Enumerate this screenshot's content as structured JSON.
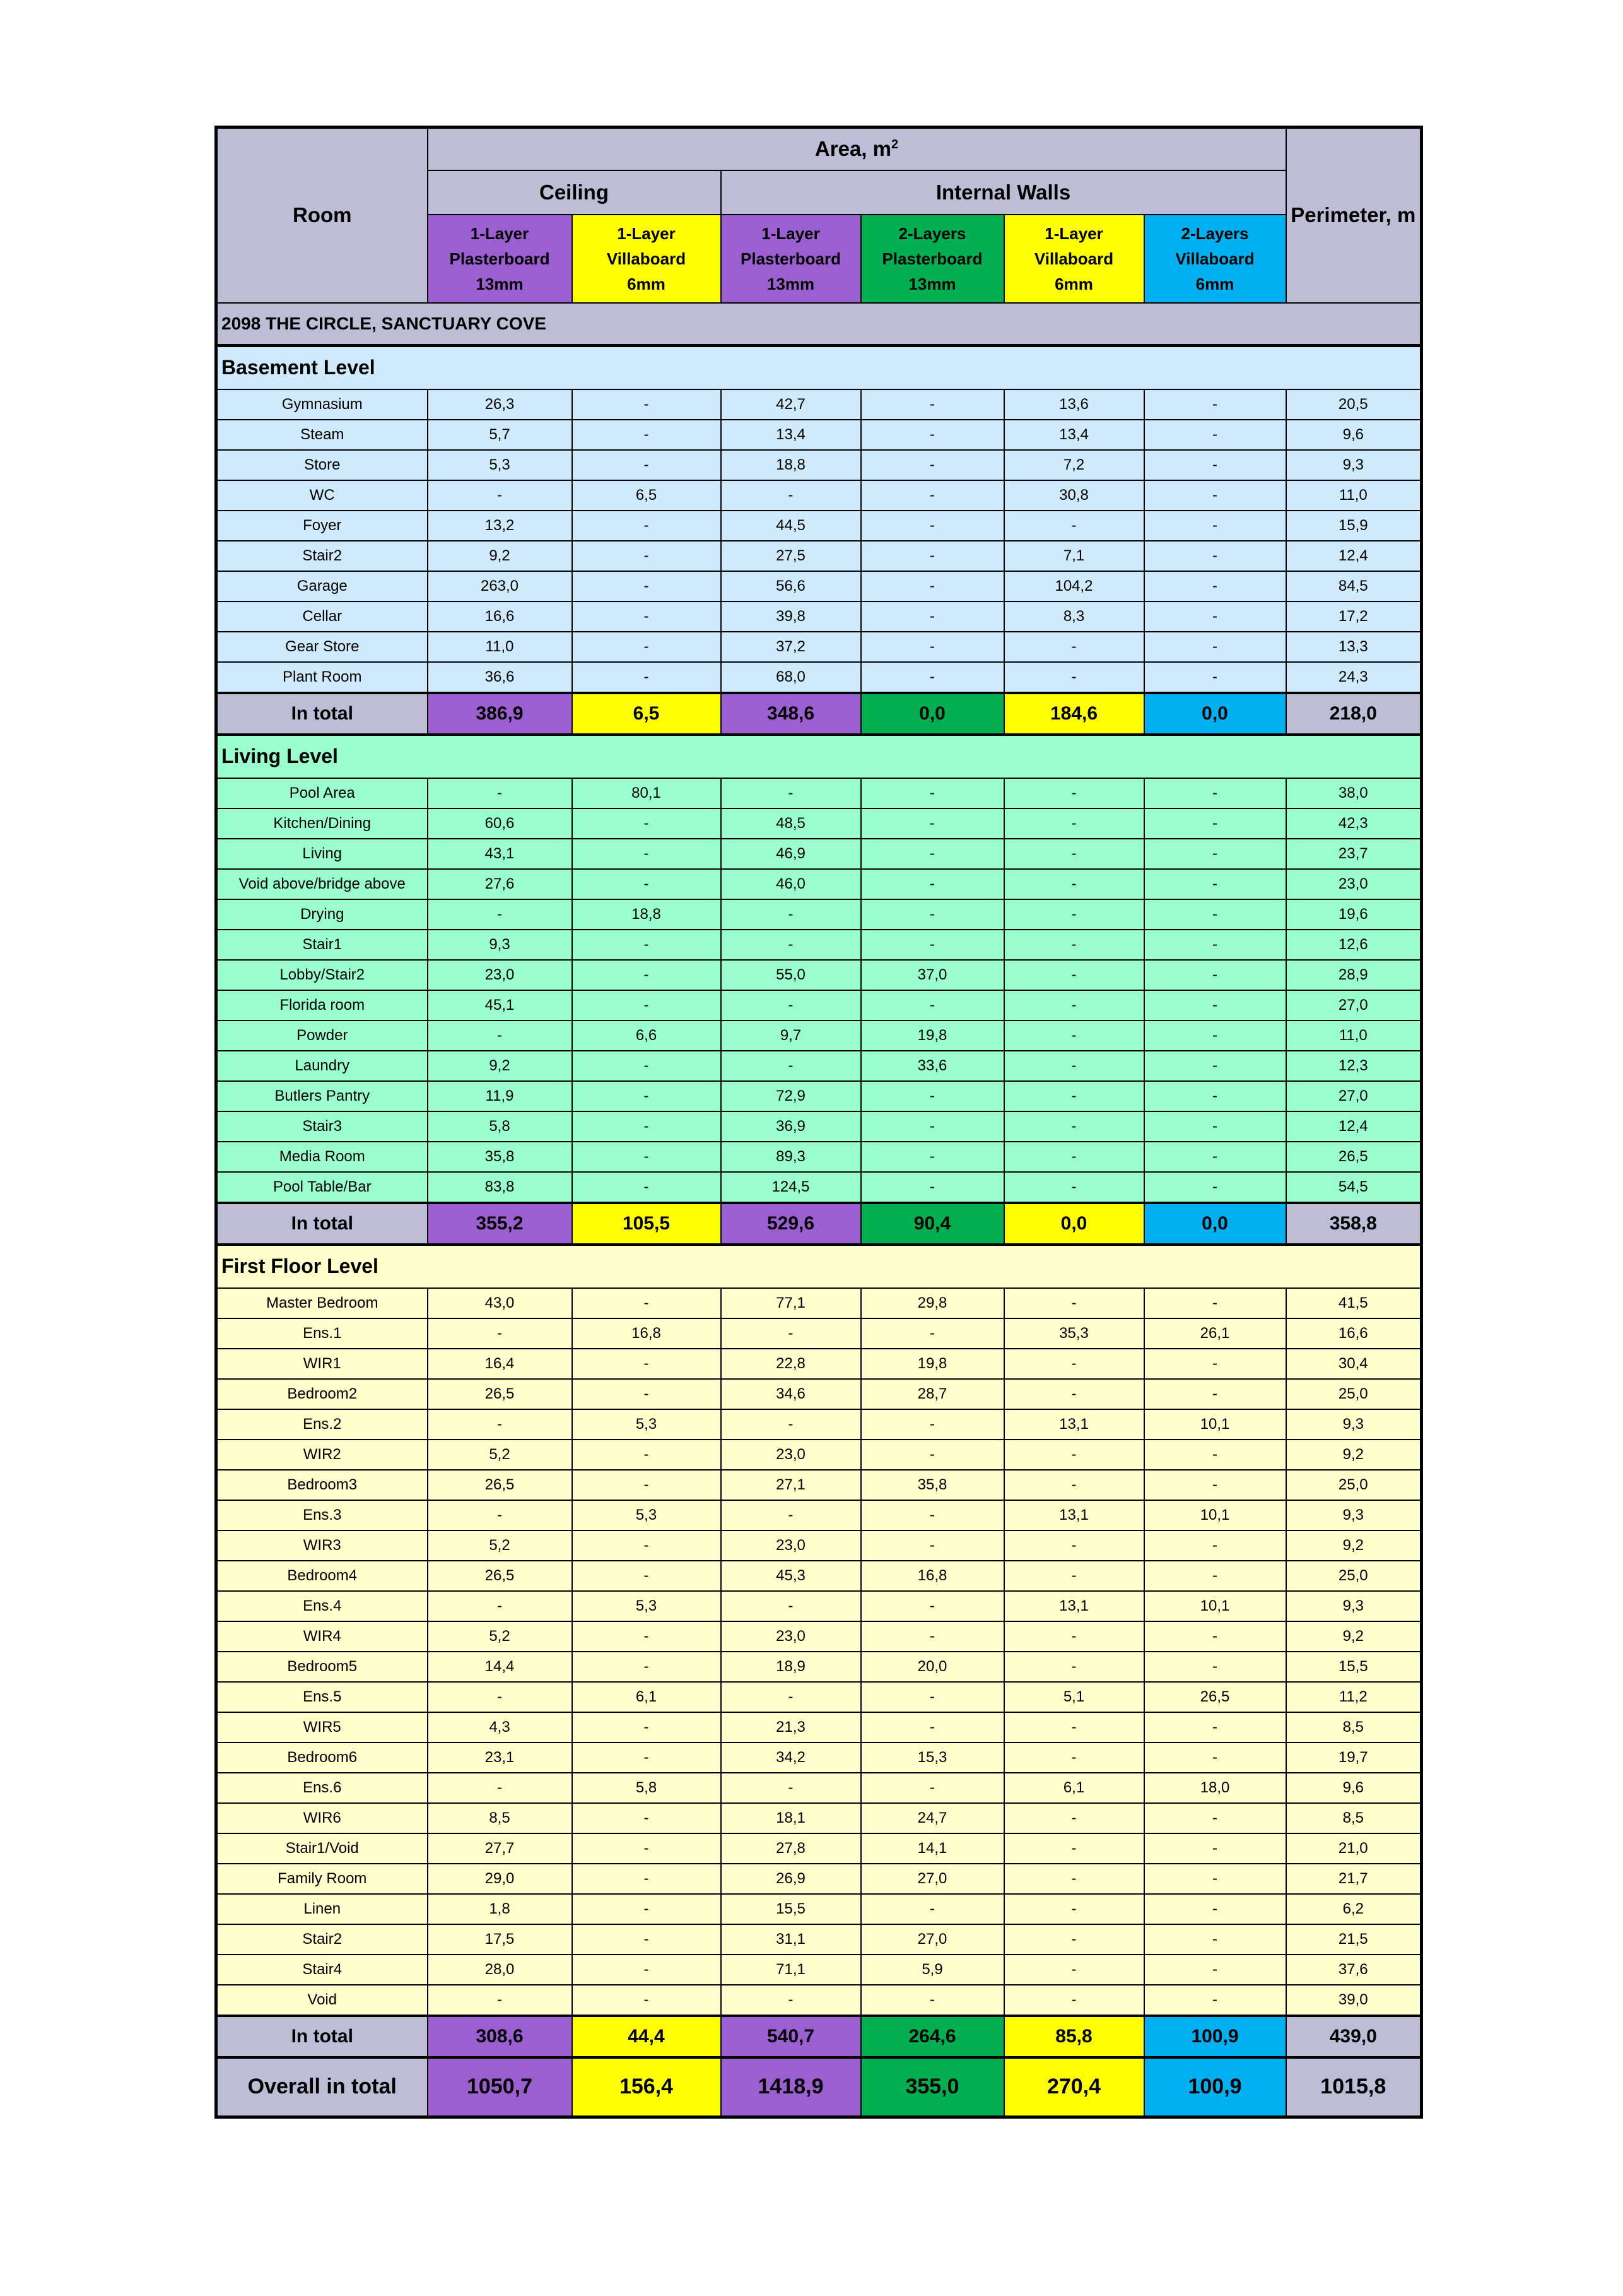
{
  "header": {
    "room": "Room",
    "area": "Area, m",
    "area_sup": "2",
    "ceiling": "Ceiling",
    "internal_walls": "Internal Walls",
    "perimeter": "Perimeter, m",
    "columns": [
      {
        "line1": "1-Layer",
        "line2": "Plasterboard",
        "line3": "13mm",
        "color": "#9c5fd1"
      },
      {
        "line1": "1-Layer",
        "line2": "Villaboard",
        "line3": "6mm",
        "color": "#ffff00"
      },
      {
        "line1": "1-Layer",
        "line2": "Plasterboard",
        "line3": "13mm",
        "color": "#9c5fd1"
      },
      {
        "line1": "2-Layers",
        "line2": "Plasterboard",
        "line3": "13mm",
        "color": "#00b050"
      },
      {
        "line1": "1-Layer",
        "line2": "Villaboard",
        "line3": "6mm",
        "color": "#ffff00"
      },
      {
        "line1": "2-Layers",
        "line2": "Villaboard",
        "line3": "6mm",
        "color": "#00b0f0"
      }
    ],
    "header_bg": "#bdbdd6"
  },
  "project_title": "2098 THE CIRCLE, SANCTUARY COVE",
  "sections": [
    {
      "name": "Basement Level",
      "bg": "#cfeafb",
      "rows": [
        [
          "Gymnasium",
          "26,3",
          "-",
          "42,7",
          "-",
          "13,6",
          "-",
          "20,5"
        ],
        [
          "Steam",
          "5,7",
          "-",
          "13,4",
          "-",
          "13,4",
          "-",
          "9,6"
        ],
        [
          "Store",
          "5,3",
          "-",
          "18,8",
          "-",
          "7,2",
          "-",
          "9,3"
        ],
        [
          "WC",
          "-",
          "6,5",
          "-",
          "-",
          "30,8",
          "-",
          "11,0"
        ],
        [
          "Foyer",
          "13,2",
          "-",
          "44,5",
          "-",
          "-",
          "-",
          "15,9"
        ],
        [
          "Stair2",
          "9,2",
          "-",
          "27,5",
          "-",
          "7,1",
          "-",
          "12,4"
        ],
        [
          "Garage",
          "263,0",
          "-",
          "56,6",
          "-",
          "104,2",
          "-",
          "84,5"
        ],
        [
          "Cellar",
          "16,6",
          "-",
          "39,8",
          "-",
          "8,3",
          "-",
          "17,2"
        ],
        [
          "Gear Store",
          "11,0",
          "-",
          "37,2",
          "-",
          "-",
          "-",
          "13,3"
        ],
        [
          "Plant Room",
          "36,6",
          "-",
          "68,0",
          "-",
          "-",
          "-",
          "24,3"
        ]
      ],
      "total": [
        "In total",
        "386,9",
        "6,5",
        "348,6",
        "0,0",
        "184,6",
        "0,0",
        "218,0"
      ]
    },
    {
      "name": "Living Level",
      "bg": "#99ffcc",
      "rows": [
        [
          "Pool Area",
          "-",
          "80,1",
          "-",
          "-",
          "-",
          "-",
          "38,0"
        ],
        [
          "Kitchen/Dining",
          "60,6",
          "-",
          "48,5",
          "-",
          "-",
          "-",
          "42,3"
        ],
        [
          "Living",
          "43,1",
          "-",
          "46,9",
          "-",
          "-",
          "-",
          "23,7"
        ],
        [
          "Void above/bridge above",
          "27,6",
          "-",
          "46,0",
          "-",
          "-",
          "-",
          "23,0"
        ],
        [
          "Drying",
          "-",
          "18,8",
          "-",
          "-",
          "-",
          "-",
          "19,6"
        ],
        [
          "Stair1",
          "9,3",
          "-",
          "-",
          "-",
          "-",
          "-",
          "12,6"
        ],
        [
          "Lobby/Stair2",
          "23,0",
          "-",
          "55,0",
          "37,0",
          "-",
          "-",
          "28,9"
        ],
        [
          "Florida room",
          "45,1",
          "-",
          "-",
          "-",
          "-",
          "-",
          "27,0"
        ],
        [
          "Powder",
          "-",
          "6,6",
          "9,7",
          "19,8",
          "-",
          "-",
          "11,0"
        ],
        [
          "Laundry",
          "9,2",
          "-",
          "-",
          "33,6",
          "-",
          "-",
          "12,3"
        ],
        [
          "Butlers Pantry",
          "11,9",
          "-",
          "72,9",
          "-",
          "-",
          "-",
          "27,0"
        ],
        [
          "Stair3",
          "5,8",
          "-",
          "36,9",
          "-",
          "-",
          "-",
          "12,4"
        ],
        [
          "Media Room",
          "35,8",
          "-",
          "89,3",
          "-",
          "-",
          "-",
          "26,5"
        ],
        [
          "Pool Table/Bar",
          "83,8",
          "-",
          "124,5",
          "-",
          "-",
          "-",
          "54,5"
        ]
      ],
      "total": [
        "In total",
        "355,2",
        "105,5",
        "529,6",
        "90,4",
        "0,0",
        "0,0",
        "358,8"
      ]
    },
    {
      "name": "First Floor Level",
      "bg": "#ffffcc",
      "rows": [
        [
          "Master Bedroom",
          "43,0",
          "-",
          "77,1",
          "29,8",
          "-",
          "-",
          "41,5"
        ],
        [
          "Ens.1",
          "-",
          "16,8",
          "-",
          "-",
          "35,3",
          "26,1",
          "16,6"
        ],
        [
          "WIR1",
          "16,4",
          "-",
          "22,8",
          "19,8",
          "-",
          "-",
          "30,4"
        ],
        [
          "Bedroom2",
          "26,5",
          "-",
          "34,6",
          "28,7",
          "-",
          "-",
          "25,0"
        ],
        [
          "Ens.2",
          "-",
          "5,3",
          "-",
          "-",
          "13,1",
          "10,1",
          "9,3"
        ],
        [
          "WIR2",
          "5,2",
          "-",
          "23,0",
          "-",
          "-",
          "-",
          "9,2"
        ],
        [
          "Bedroom3",
          "26,5",
          "-",
          "27,1",
          "35,8",
          "-",
          "-",
          "25,0"
        ],
        [
          "Ens.3",
          "-",
          "5,3",
          "-",
          "-",
          "13,1",
          "10,1",
          "9,3"
        ],
        [
          "WIR3",
          "5,2",
          "-",
          "23,0",
          "-",
          "-",
          "-",
          "9,2"
        ],
        [
          "Bedroom4",
          "26,5",
          "-",
          "45,3",
          "16,8",
          "-",
          "-",
          "25,0"
        ],
        [
          "Ens.4",
          "-",
          "5,3",
          "-",
          "-",
          "13,1",
          "10,1",
          "9,3"
        ],
        [
          "WIR4",
          "5,2",
          "-",
          "23,0",
          "-",
          "-",
          "-",
          "9,2"
        ],
        [
          "Bedroom5",
          "14,4",
          "-",
          "18,9",
          "20,0",
          "-",
          "-",
          "15,5"
        ],
        [
          "Ens.5",
          "-",
          "6,1",
          "-",
          "-",
          "5,1",
          "26,5",
          "11,2"
        ],
        [
          "WIR5",
          "4,3",
          "-",
          "21,3",
          "-",
          "-",
          "-",
          "8,5"
        ],
        [
          "Bedroom6",
          "23,1",
          "-",
          "34,2",
          "15,3",
          "-",
          "-",
          "19,7"
        ],
        [
          "Ens.6",
          "-",
          "5,8",
          "-",
          "-",
          "6,1",
          "18,0",
          "9,6"
        ],
        [
          "WIR6",
          "8,5",
          "-",
          "18,1",
          "24,7",
          "-",
          "-",
          "8,5"
        ],
        [
          "Stair1/Void",
          "27,7",
          "-",
          "27,8",
          "14,1",
          "-",
          "-",
          "21,0"
        ],
        [
          "Family Room",
          "29,0",
          "-",
          "26,9",
          "27,0",
          "-",
          "-",
          "21,7"
        ],
        [
          "Linen",
          "1,8",
          "-",
          "15,5",
          "-",
          "-",
          "-",
          "6,2"
        ],
        [
          "Stair2",
          "17,5",
          "-",
          "31,1",
          "27,0",
          "-",
          "-",
          "21,5"
        ],
        [
          "Stair4",
          "28,0",
          "-",
          "71,1",
          "5,9",
          "-",
          "-",
          "37,6"
        ],
        [
          "Void",
          "-",
          "-",
          "-",
          "-",
          "-",
          "-",
          "39,0"
        ]
      ],
      "total": [
        "In total",
        "308,6",
        "44,4",
        "540,7",
        "264,6",
        "85,8",
        "100,9",
        "439,0"
      ]
    }
  ],
  "overall_total": [
    "Overall in total",
    "1050,7",
    "156,4",
    "1418,9",
    "355,0",
    "270,4",
    "100,9",
    "1015,8"
  ]
}
